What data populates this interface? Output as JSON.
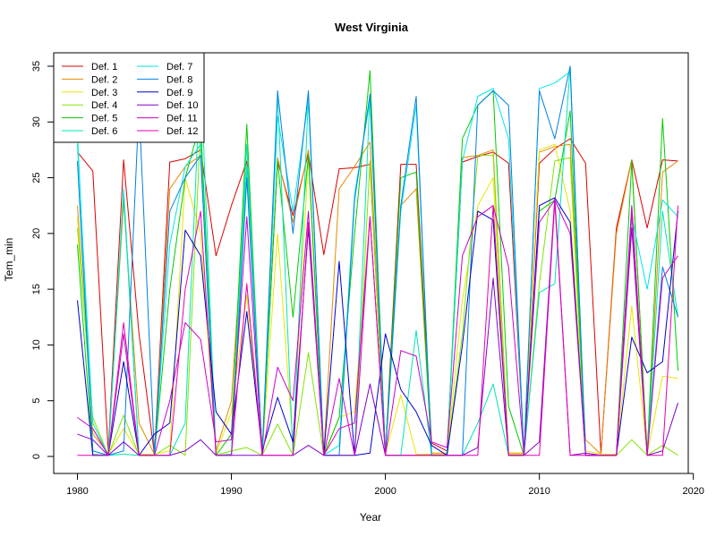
{
  "chart_data": {
    "type": "line",
    "title": "West Virginia",
    "xlabel": "Year",
    "ylabel": "Tem_min",
    "xlim": [
      1980,
      2019
    ],
    "ylim": [
      0,
      35
    ],
    "x_ticks": [
      1980,
      1990,
      2000,
      2010,
      2020
    ],
    "y_ticks": [
      0,
      5,
      10,
      15,
      20,
      25,
      30,
      35
    ],
    "grid": false,
    "legend_position": "top-left",
    "x": [
      1980,
      1981,
      1982,
      1983,
      1984,
      1985,
      1986,
      1987,
      1988,
      1989,
      1990,
      1991,
      1992,
      1993,
      1994,
      1995,
      1996,
      1997,
      1998,
      1999,
      2000,
      2001,
      2002,
      2003,
      2004,
      2005,
      2006,
      2007,
      2008,
      2009,
      2010,
      2011,
      2012,
      2013,
      2014,
      2015,
      2016,
      2017,
      2018,
      2019
    ],
    "series": [
      {
        "name": "Def. 1",
        "color": "#DD0000",
        "values": [
          27.3,
          25.6,
          0.5,
          26.6,
          11.0,
          0.2,
          26.4,
          26.7,
          27.5,
          18.0,
          22.5,
          26.5,
          0.5,
          26.5,
          21.6,
          27.2,
          18.1,
          25.8,
          25.9,
          26.2,
          0.2,
          26.2,
          26.2,
          1.2,
          0.5,
          26.4,
          26.9,
          27.3,
          26.3,
          0.3,
          26.3,
          27.6,
          28.5,
          26.3,
          0.2,
          20.5,
          26.6,
          20.5,
          26.6,
          26.5
        ]
      },
      {
        "name": "Def. 2",
        "color": "#E68A00",
        "values": [
          22.5,
          2.0,
          0.3,
          23.0,
          3.0,
          0.2,
          24.0,
          26.0,
          27.0,
          0.5,
          5.0,
          26.0,
          0.2,
          26.8,
          21.0,
          27.5,
          0.3,
          24.0,
          26.0,
          28.2,
          0.3,
          22.5,
          24.0,
          0.3,
          0.3,
          26.8,
          27.0,
          27.5,
          0.3,
          0.3,
          27.3,
          27.8,
          28.0,
          1.5,
          0.2,
          20.0,
          26.6,
          0.3,
          25.5,
          26.5
        ]
      },
      {
        "name": "Def. 3",
        "color": "#E6E600",
        "values": [
          21.5,
          2.5,
          0.2,
          2.5,
          0.2,
          0.2,
          0.5,
          25.0,
          20.0,
          0.2,
          4.0,
          14.5,
          0.2,
          20.0,
          1.0,
          27.0,
          0.2,
          3.5,
          4.0,
          21.5,
          0.2,
          5.5,
          0.2,
          0.2,
          0.2,
          14.0,
          22.5,
          25.0,
          0.2,
          0.2,
          27.5,
          28.0,
          22.0,
          0.5,
          0.2,
          0.2,
          13.5,
          0.2,
          7.2,
          7.0
        ]
      },
      {
        "name": "Def. 4",
        "color": "#80E600",
        "values": [
          20.5,
          3.5,
          0.1,
          3.7,
          0.1,
          0.1,
          1.0,
          0.1,
          29.5,
          0.1,
          0.5,
          0.8,
          0.1,
          2.9,
          0.1,
          9.3,
          0.1,
          0.1,
          0.1,
          26.5,
          0.1,
          0.1,
          0.1,
          0.1,
          0.1,
          11.0,
          27.0,
          27.0,
          0.1,
          0.1,
          15.5,
          26.5,
          26.8,
          0.1,
          0.1,
          0.1,
          1.5,
          0.1,
          1.0,
          0.1
        ]
      },
      {
        "name": "Def. 5",
        "color": "#00CC00",
        "values": [
          19.0,
          0.1,
          0.1,
          23.5,
          0.1,
          0.1,
          15.0,
          25.0,
          30.0,
          0.1,
          2.0,
          29.8,
          0.1,
          26.5,
          12.5,
          27.0,
          0.1,
          3.5,
          20.0,
          34.6,
          0.1,
          25.0,
          25.5,
          0.1,
          0.1,
          28.5,
          31.5,
          32.8,
          4.5,
          0.1,
          22.0,
          23.0,
          31.0,
          0.1,
          0.1,
          0.1,
          26.5,
          0.1,
          30.3,
          7.7
        ]
      },
      {
        "name": "Def. 6",
        "color": "#00E6B3",
        "values": [
          29.0,
          0.2,
          0.1,
          0.2,
          0.1,
          0.1,
          0.1,
          3.0,
          34.8,
          0.1,
          0.2,
          28.0,
          0.1,
          32.5,
          0.1,
          32.3,
          0.1,
          0.1,
          0.1,
          32.5,
          0.1,
          0.1,
          11.3,
          0.1,
          0.1,
          0.1,
          3.0,
          6.5,
          0.1,
          0.1,
          14.7,
          15.5,
          35.0,
          0.1,
          0.1,
          0.1,
          22.5,
          0.1,
          22.0,
          12.5
        ]
      },
      {
        "name": "Def. 7",
        "color": "#00E6E6",
        "values": [
          28.0,
          3.0,
          0.1,
          24.0,
          0.1,
          0.1,
          19.0,
          26.0,
          28.0,
          0.1,
          0.1,
          26.0,
          0.1,
          30.5,
          22.0,
          32.0,
          0.1,
          1.0,
          23.5,
          32.0,
          0.1,
          22.0,
          31.5,
          0.1,
          0.1,
          26.5,
          32.3,
          33.0,
          28.5,
          0.1,
          33.0,
          33.5,
          34.5,
          0.1,
          0.1,
          0.1,
          21.5,
          15.0,
          23.0,
          21.5
        ]
      },
      {
        "name": "Def. 8",
        "color": "#0080E6",
        "values": [
          26.5,
          0.5,
          0.1,
          0.5,
          31.5,
          0.1,
          22.0,
          25.0,
          27.0,
          0.1,
          0.1,
          25.0,
          0.1,
          32.8,
          20.0,
          32.8,
          0.1,
          0.1,
          23.0,
          32.5,
          0.1,
          22.5,
          32.3,
          0.1,
          0.1,
          0.1,
          31.5,
          32.8,
          31.5,
          0.1,
          32.8,
          28.5,
          35.0,
          0.1,
          0.1,
          0.1,
          22.0,
          0.1,
          17.0,
          12.5
        ]
      },
      {
        "name": "Def. 9",
        "color": "#0000CC",
        "values": [
          14.0,
          0.1,
          0.1,
          8.5,
          0.1,
          2.0,
          3.0,
          20.3,
          18.0,
          4.0,
          2.0,
          13.0,
          0.5,
          5.3,
          1.3,
          20.5,
          0.1,
          17.5,
          0.1,
          0.3,
          11.0,
          6.0,
          4.0,
          1.0,
          0.1,
          10.0,
          22.0,
          21.2,
          0.1,
          0.1,
          22.5,
          23.2,
          21.0,
          0.1,
          0.1,
          0.1,
          10.7,
          7.5,
          8.5,
          22.0
        ]
      },
      {
        "name": "Def. 10",
        "color": "#8000CC",
        "values": [
          2.0,
          1.5,
          0.1,
          1.3,
          0.1,
          0.1,
          0.1,
          0.5,
          1.5,
          0.1,
          0.1,
          0.1,
          0.1,
          0.1,
          0.1,
          1.0,
          0.1,
          0.1,
          0.1,
          6.5,
          0.1,
          0.1,
          0.1,
          0.1,
          0.1,
          0.1,
          0.8,
          16.0,
          0.1,
          0.1,
          1.3,
          23.2,
          0.1,
          0.3,
          0.1,
          0.1,
          20.5,
          0.1,
          0.5,
          4.8
        ]
      },
      {
        "name": "Def. 11",
        "color": "#CC00CC",
        "values": [
          3.5,
          2.5,
          0.1,
          11.0,
          0.1,
          0.1,
          5.0,
          12.0,
          10.5,
          1.3,
          1.5,
          21.5,
          0.1,
          8.0,
          5.0,
          22.0,
          0.1,
          7.0,
          0.1,
          21.5,
          0.1,
          9.5,
          9.0,
          1.3,
          0.8,
          18.0,
          21.5,
          22.5,
          17.0,
          0.1,
          21.0,
          23.0,
          20.0,
          0.1,
          0.1,
          0.1,
          22.5,
          0.1,
          16.0,
          18.0
        ]
      },
      {
        "name": "Def. 12",
        "color": "#E600B3",
        "values": [
          0.1,
          0.1,
          0.1,
          12.0,
          0.1,
          0.1,
          0.1,
          15.0,
          22.0,
          0.1,
          0.1,
          15.5,
          0.1,
          0.1,
          0.1,
          21.0,
          0.1,
          2.5,
          3.0,
          21.5,
          0.1,
          0.1,
          0.1,
          0.1,
          0.1,
          0.1,
          0.1,
          22.5,
          0.1,
          0.1,
          0.1,
          22.8,
          0.1,
          0.1,
          0.1,
          0.1,
          22.0,
          0.1,
          0.1,
          22.5
        ]
      }
    ]
  }
}
